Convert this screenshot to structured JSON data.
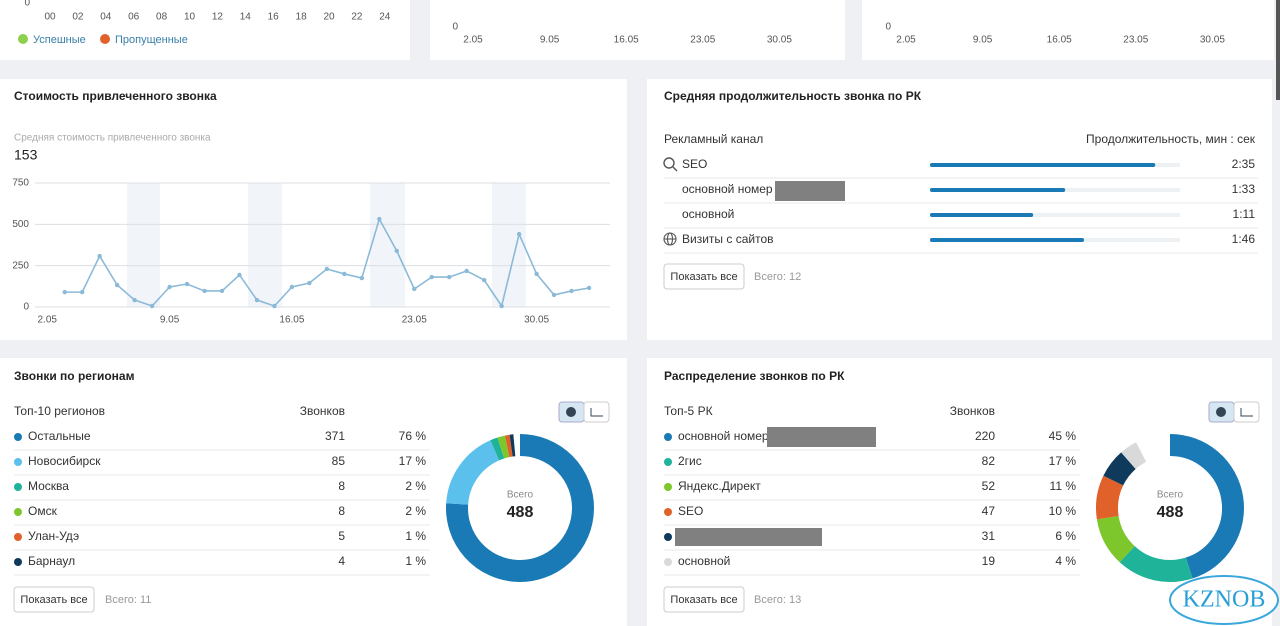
{
  "hourly_card": {
    "y_label": 0,
    "x_labels": [
      "00",
      "02",
      "04",
      "06",
      "08",
      "10",
      "12",
      "14",
      "16",
      "18",
      "20",
      "22",
      "24"
    ],
    "legend": [
      "Успешные",
      "Пропущенные"
    ]
  },
  "calls_card_a": {
    "y_label": 0,
    "x_labels": [
      "2.05",
      "9.05",
      "16.05",
      "23.05",
      "30.05"
    ]
  },
  "calls_card_b": {
    "y_label": 0,
    "x_labels": [
      "2.05",
      "9.05",
      "16.05",
      "23.05",
      "30.05"
    ]
  },
  "chart_data": {
    "type": "line",
    "title": "Стоимость привлеченного звонка",
    "subtitle": "Средняя стоимость привлеченного звонка",
    "summary_value": 153,
    "x": [
      3,
      4,
      5,
      6,
      7,
      8,
      9,
      10,
      11,
      12,
      13,
      14,
      15,
      16,
      17,
      18,
      19,
      20,
      21,
      22,
      23,
      24,
      25,
      26,
      27,
      28,
      29,
      30,
      31,
      32,
      33
    ],
    "values": [
      90,
      90,
      308,
      133,
      42,
      6,
      121,
      139,
      97,
      97,
      194,
      42,
      6,
      121,
      145,
      230,
      200,
      175,
      532,
      339,
      109,
      181,
      181,
      218,
      163,
      6,
      441,
      200,
      73,
      97,
      115
    ],
    "xlim": [
      1.3,
      34.2
    ],
    "xticks": [
      {
        "value": 2,
        "label": "2.05"
      },
      {
        "value": 9,
        "label": "9.05"
      },
      {
        "value": 16,
        "label": "16.05"
      },
      {
        "value": 23,
        "label": "23.05"
      },
      {
        "value": 30,
        "label": "30.05"
      }
    ],
    "ylim": [
      0,
      750
    ],
    "yticks": [
      0,
      250,
      500,
      750
    ],
    "color": "#8bbad8",
    "grid": true
  },
  "duration_card": {
    "title": "Средняя продолжительность звонка по РК",
    "columns": [
      "Рекламный канал",
      "Продолжительность, мин : сек"
    ],
    "rows": [
      {
        "name": "SEO",
        "duration": {
          "value": 155,
          "label": "2:35"
        }
      },
      {
        "name": "основной номер",
        "duration": {
          "value": 93,
          "label": "1:33"
        }
      },
      {
        "name": "основной",
        "duration": {
          "value": 71,
          "label": "1:11"
        }
      },
      {
        "name": "Визиты с сайтов",
        "duration": {
          "value": 106,
          "label": "1:46"
        }
      }
    ],
    "xlim": [
      0,
      172
    ],
    "color": "#1a7ab5",
    "button": "Показать все",
    "footer": "Всего: 12"
  },
  "regions_card": {
    "title": "Звонки по регионам",
    "columns": [
      "Топ-10 регионов",
      "Звонков"
    ],
    "rows": [
      {
        "name": "Остальные",
        "count": 371,
        "share": "76 %",
        "color": "#1a7ab5"
      },
      {
        "name": "Новосибирск",
        "count": 85,
        "share": "17 %",
        "color": "#5bc0eb"
      },
      {
        "name": "Москва",
        "count": 8,
        "share": "2 %",
        "color": "#1fb39a"
      },
      {
        "name": "Омск",
        "count": 8,
        "share": "2 %",
        "color": "#7dc62c"
      },
      {
        "name": "Улан-Удэ",
        "count": 5,
        "share": "1 %",
        "color": "#e0622a"
      },
      {
        "name": "Барнаул",
        "count": 4,
        "share": "1 %",
        "color": "#0f3a5b"
      }
    ],
    "center_label": "Всего",
    "total": 488,
    "button": "Показать все",
    "footer": "Всего: 11"
  },
  "rk_card": {
    "title": "Распределение звонков по РК",
    "columns": [
      "Топ-5 РК",
      "Звонков"
    ],
    "rows": [
      {
        "name": "основной номер",
        "count": 220,
        "share": "45 %",
        "color": "#1a7ab5"
      },
      {
        "name": "2гис",
        "count": 82,
        "share": "17 %",
        "color": "#1fb39a"
      },
      {
        "name": "Яндекс.Директ",
        "count": 52,
        "share": "11 %",
        "color": "#7dc62c"
      },
      {
        "name": "SEO",
        "count": 47,
        "share": "10 %",
        "color": "#e0622a"
      },
      {
        "count": 31,
        "share": "6 %",
        "color": "#0f3a5b"
      },
      {
        "name": "основной",
        "count": 19,
        "share": "4 %",
        "color": "#d9d9d9"
      }
    ],
    "center_label": "Всего",
    "total": 488,
    "button": "Показать все",
    "footer": "Всего: 13"
  },
  "watermark": "KZNOB"
}
